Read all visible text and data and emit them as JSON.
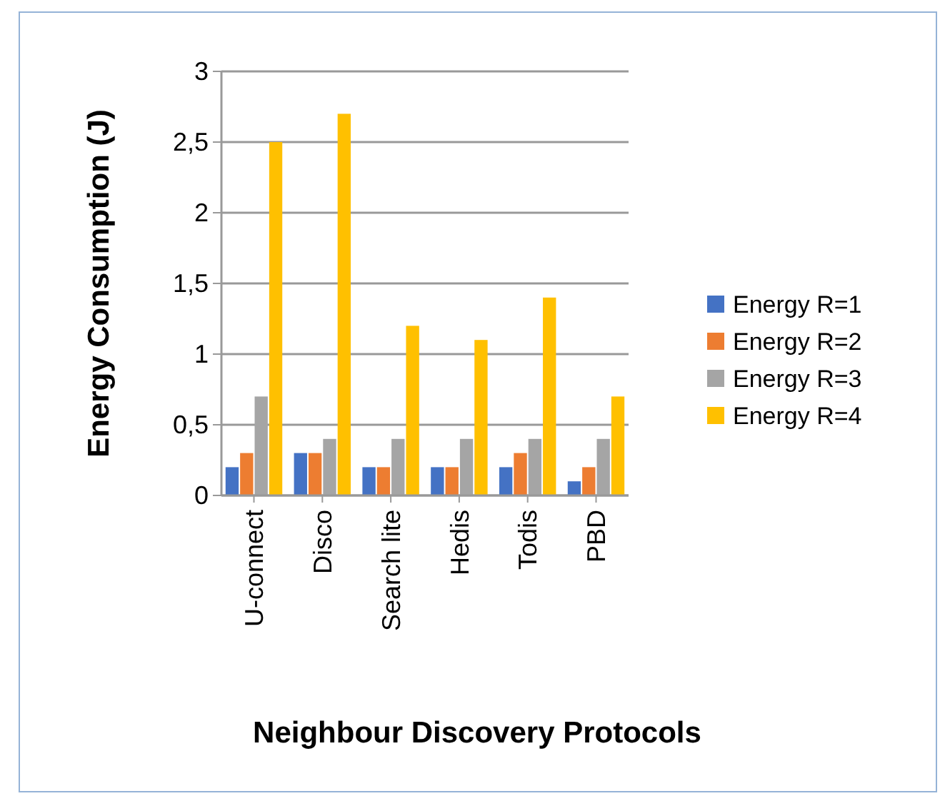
{
  "chart_data": {
    "type": "bar",
    "xlabel": "Neighbour Discovery Protocols",
    "ylabel": "Energy Consumption (J)",
    "categories": [
      "U-connect",
      "Disco",
      "Search lite",
      "Hedis",
      "Todis",
      "PBD"
    ],
    "series": [
      {
        "name": "Energy R=1",
        "color": "#4472c4",
        "values": [
          0.2,
          0.3,
          0.2,
          0.2,
          0.2,
          0.1
        ]
      },
      {
        "name": "Energy R=2",
        "color": "#ed7d31",
        "values": [
          0.3,
          0.3,
          0.2,
          0.2,
          0.3,
          0.2
        ]
      },
      {
        "name": "Energy R=3",
        "color": "#a5a5a5",
        "values": [
          0.7,
          0.4,
          0.4,
          0.4,
          0.4,
          0.4
        ]
      },
      {
        "name": "Energy R=4",
        "color": "#ffc000",
        "values": [
          2.5,
          2.7,
          1.2,
          1.1,
          1.4,
          0.7
        ]
      }
    ],
    "ylim": [
      0,
      3
    ],
    "yticks": [
      0,
      {
        "value": 0.5,
        "label": "0,5"
      },
      1,
      {
        "value": 1.5,
        "label": "1,5"
      },
      2,
      {
        "value": 2.5,
        "label": "2,5"
      },
      3
    ],
    "grid": "y",
    "legend": "right"
  }
}
